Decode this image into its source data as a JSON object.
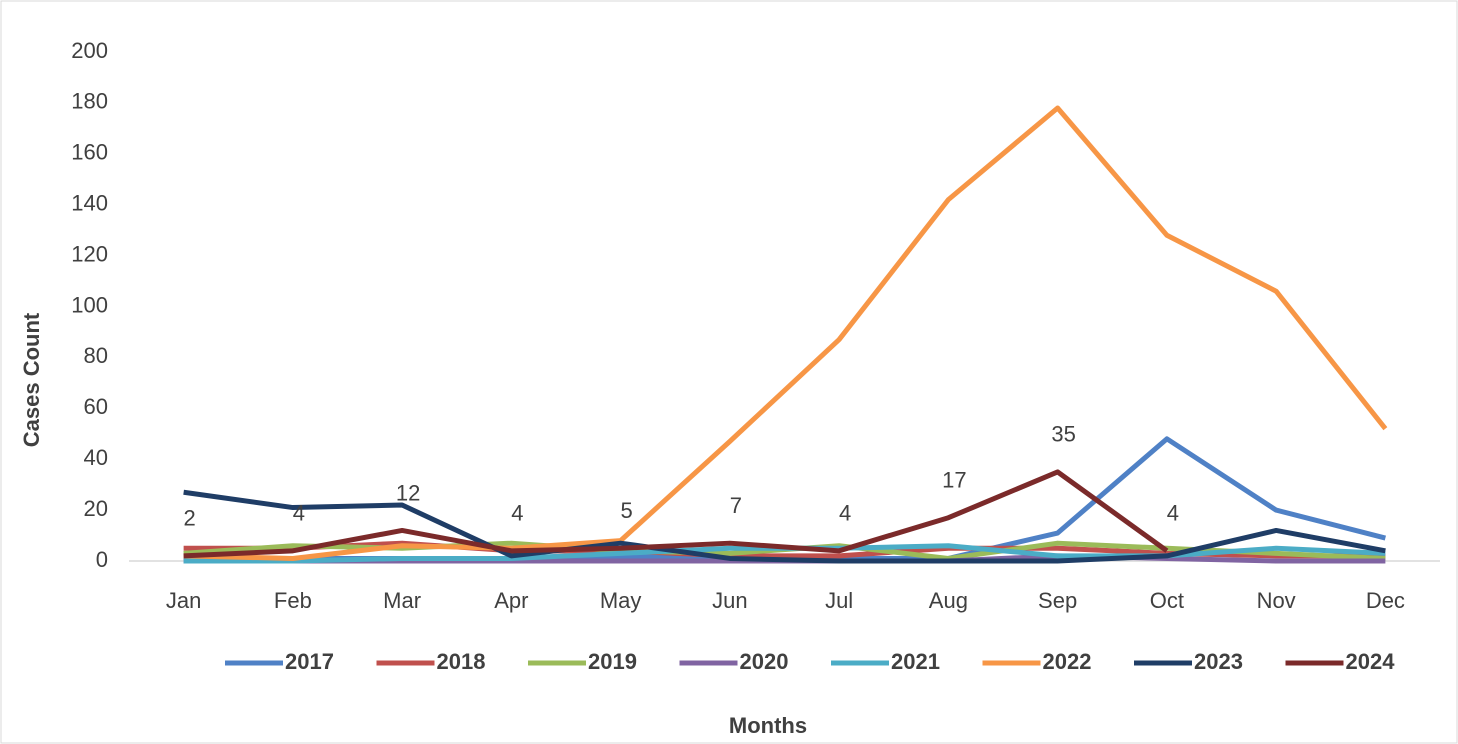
{
  "chart_data": {
    "type": "line",
    "x_label": "Months",
    "y_label": "Cases Count",
    "categories": [
      "Jan",
      "Feb",
      "Mar",
      "Apr",
      "May",
      "Jun",
      "Jul",
      "Aug",
      "Sep",
      "Oct",
      "Nov",
      "Dec"
    ],
    "ylim": [
      0,
      200
    ],
    "yticks": [
      0,
      20,
      40,
      60,
      80,
      100,
      120,
      140,
      160,
      180,
      200
    ],
    "grid": false,
    "legend": "bottom",
    "series": [
      {
        "name": "2017",
        "color": "#4f81c6",
        "values": [
          1,
          1,
          1,
          1,
          2,
          1,
          1,
          1,
          11,
          48,
          20,
          9
        ]
      },
      {
        "name": "2018",
        "color": "#c0504d",
        "values": [
          5,
          5,
          7,
          4,
          4,
          2,
          2,
          5,
          5,
          3,
          2,
          2
        ]
      },
      {
        "name": "2019",
        "color": "#9bbb59",
        "values": [
          3,
          6,
          5,
          7,
          4,
          3,
          6,
          1,
          7,
          5,
          3,
          1
        ]
      },
      {
        "name": "2020",
        "color": "#8064a2",
        "values": [
          0,
          0,
          0,
          0,
          0,
          0,
          0,
          0,
          2,
          1,
          0,
          0
        ]
      },
      {
        "name": "2021",
        "color": "#4bacc6",
        "values": [
          0,
          0,
          1,
          1,
          3,
          5,
          5,
          6,
          2,
          2,
          5,
          3
        ]
      },
      {
        "name": "2022",
        "color": "#f79646",
        "values": [
          2,
          1,
          6,
          5,
          8,
          47,
          87,
          142,
          178,
          128,
          106,
          52
        ]
      },
      {
        "name": "2023",
        "color": "#1f3d66",
        "values": [
          27,
          21,
          22,
          2,
          7,
          1,
          0,
          0,
          0,
          2,
          12,
          4
        ]
      },
      {
        "name": "2024",
        "color": "#7b2a2a",
        "values": [
          2,
          4,
          12,
          4,
          5,
          7,
          4,
          17,
          35,
          4,
          null,
          null
        ],
        "data_labels": true
      }
    ]
  }
}
